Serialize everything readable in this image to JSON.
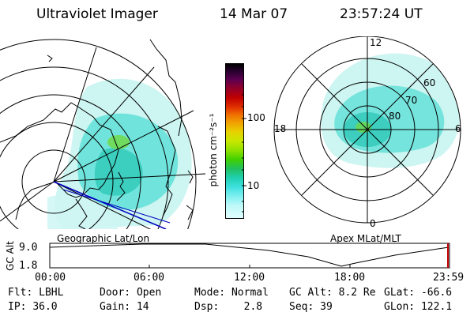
{
  "header": {
    "instrument": "Ultraviolet Imager",
    "date": "14 Mar 07",
    "time": "23:57:24 UT"
  },
  "geo_panel": {
    "label": "Geographic Lat/Lon"
  },
  "polar_panel": {
    "label": "Apex MLat/MLT",
    "mlt_labels": [
      "12",
      "18",
      "6",
      "0"
    ],
    "mlat_labels": [
      "60",
      "70",
      "80"
    ]
  },
  "colorbar": {
    "unit_label": "photon cm⁻²s⁻¹",
    "ticks": [
      "100",
      "10"
    ],
    "colors": [
      "#000000",
      "#2a0030",
      "#5a0050",
      "#8a0030",
      "#c00000",
      "#e03000",
      "#f07000",
      "#f0a000",
      "#e8d000",
      "#c8e800",
      "#90e000",
      "#40d000",
      "#20c060",
      "#20d0b0",
      "#40e0e0",
      "#80f0f0",
      "#c0f8f8",
      "#e0ffff"
    ]
  },
  "altitude_plot": {
    "y_axis_label": "GC Alt",
    "y_ticks": [
      "9.0",
      "1.8"
    ],
    "x_ticks": [
      "00:00",
      "06:00",
      "12:00",
      "18:00",
      "23:59"
    ]
  },
  "status": {
    "row1": [
      {
        "label": "Flt:",
        "value": "LBHL"
      },
      {
        "label": "Door:",
        "value": "Open"
      },
      {
        "label": "Mode:",
        "value": "Normal"
      },
      {
        "label": "GC Alt:",
        "value": "8.2 Re"
      },
      {
        "label": "GLat:",
        "value": "-66.6"
      }
    ],
    "row2": [
      {
        "label": "IP:",
        "value": "36.0"
      },
      {
        "label": "Gain:",
        "value": "14"
      },
      {
        "label": "Dsp:",
        "value": "2.8"
      },
      {
        "label": "Seq:",
        "value": "39"
      },
      {
        "label": "GLon:",
        "value": "122.1"
      }
    ]
  }
}
